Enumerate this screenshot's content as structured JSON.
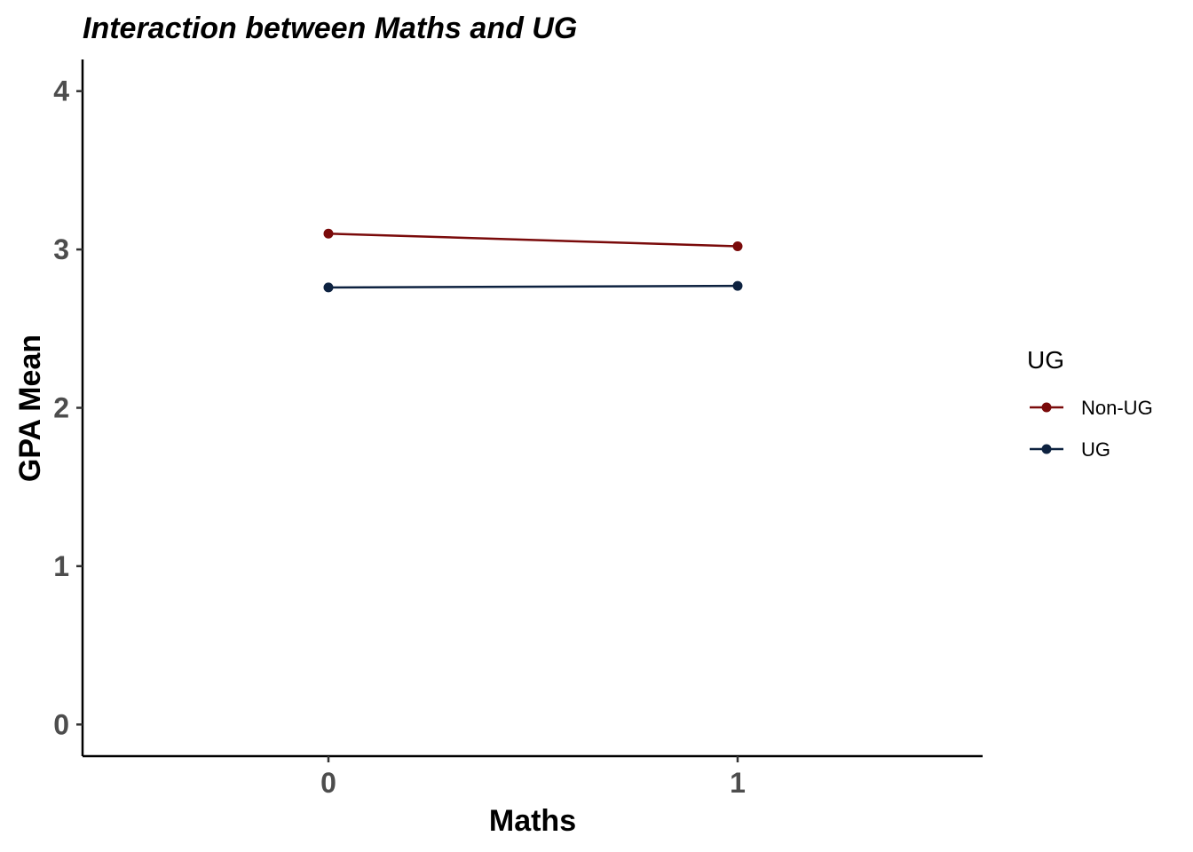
{
  "chart_data": {
    "type": "line",
    "title": "Interaction between Maths and UG",
    "xlabel": "Maths",
    "ylabel": "GPA Mean",
    "categories": [
      "0",
      "1"
    ],
    "yticks": [
      "0",
      "1",
      "2",
      "3",
      "4"
    ],
    "ylim": [
      -0.2,
      4.2
    ],
    "grid": false,
    "legend": {
      "title": "UG",
      "position": "right"
    },
    "series": [
      {
        "name": "Non-UG",
        "values": [
          3.1,
          3.02
        ],
        "color": "#7a0a0a"
      },
      {
        "name": "UG",
        "values": [
          2.76,
          2.77
        ],
        "color": "#0d2240"
      }
    ]
  }
}
